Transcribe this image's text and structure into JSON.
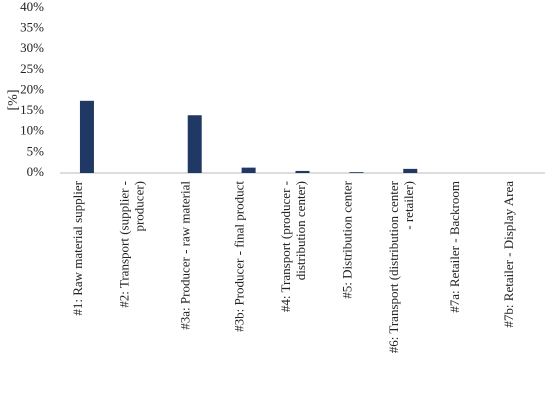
{
  "chart_data": {
    "type": "bar",
    "y_label": "[%]",
    "categories": [
      "#1: Raw material supplier",
      "#2: Transport (supplier -\nproducer)",
      "#3a: Producer - raw material",
      "#3b: Producer - final product",
      "#4: Transport (producer -\ndistribution center)",
      "#5: Distribution center",
      "#6: Transport (distribution center\n- retailer)",
      "#7a: Retailer - Backroom",
      "#7b: Retailer - Display Area"
    ],
    "values": [
      17.5,
      0,
      14,
      1.3,
      0.5,
      0.2,
      1,
      0,
      0
    ],
    "color": "#1f3864",
    "ylim": [
      0,
      40
    ],
    "yticks": [
      {
        "value": 0,
        "label": "0%"
      },
      {
        "value": 5,
        "label": "5%"
      },
      {
        "value": 10,
        "label": "10%"
      },
      {
        "value": 15,
        "label": "15%"
      },
      {
        "value": 20,
        "label": "20%"
      },
      {
        "value": 25,
        "label": "25%"
      },
      {
        "value": 30,
        "label": "30%"
      },
      {
        "value": 35,
        "label": "35%"
      },
      {
        "value": 40,
        "label": "40%"
      }
    ],
    "grid": false
  }
}
